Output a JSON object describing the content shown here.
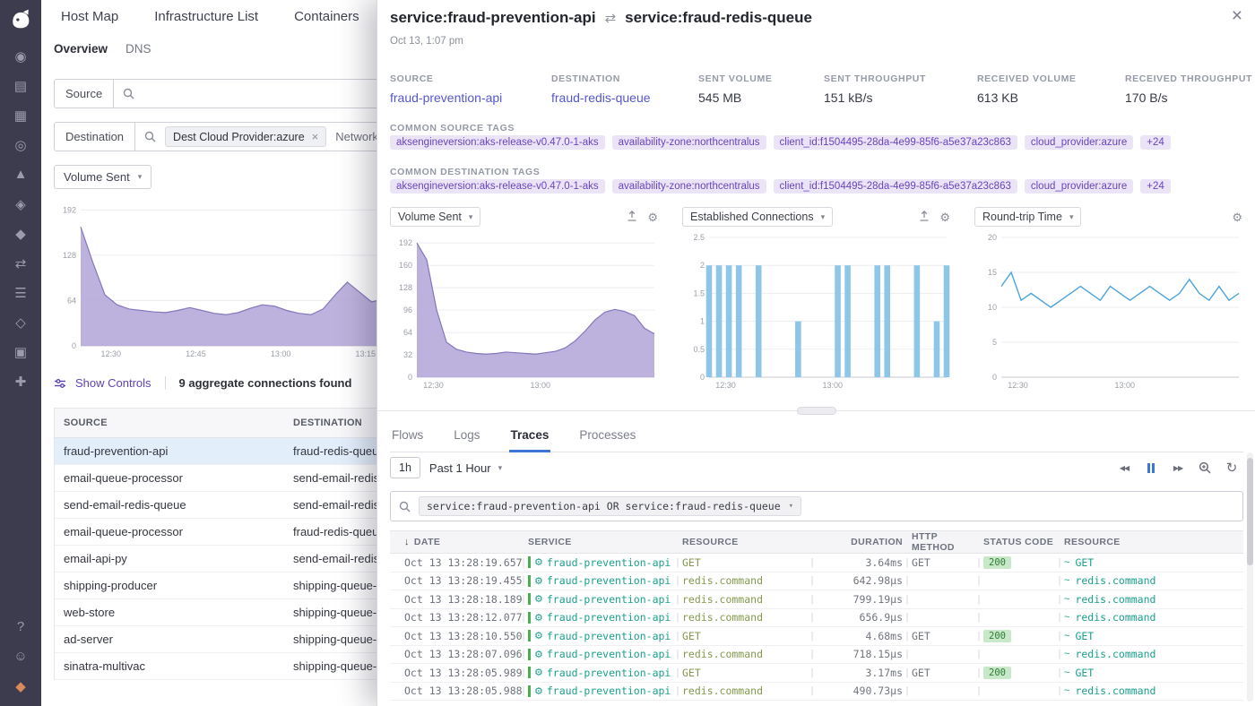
{
  "colors": {
    "accent_purple": "#774aa4",
    "chart_purple_fill": "#b4a7da",
    "chart_purple_stroke": "#8477bd",
    "chart_blue_bar": "#8ec6e8",
    "chart_blue_line": "#4aa3dd",
    "trace_green": "#49b04f",
    "service_teal": "#1aa08c",
    "status_ok_bg": "#c8e8c9",
    "status_ok_text": "#2d7d34",
    "tag_bg": "#ebe4f6",
    "tag_text": "#6a43c0",
    "active_tab_underline": "#3f74d8",
    "selected_row_bg": "#e3eefb",
    "sidebar_bg": "#3c3c4e"
  },
  "sidebar": {
    "icons": [
      {
        "name": "watchdog-icon",
        "glyph": "◉"
      },
      {
        "name": "events-icon",
        "glyph": "▤"
      },
      {
        "name": "dashboards-icon",
        "glyph": "▦"
      },
      {
        "name": "monitors-icon",
        "glyph": "◎"
      },
      {
        "name": "metrics-icon",
        "glyph": "▲"
      },
      {
        "name": "integrations-icon",
        "glyph": "◈"
      },
      {
        "name": "apm-icon",
        "glyph": "◆"
      },
      {
        "name": "network-icon",
        "glyph": "⇄"
      },
      {
        "name": "logs-icon",
        "glyph": "☰"
      },
      {
        "name": "synthetics-icon",
        "glyph": "◇"
      },
      {
        "name": "rum-icon",
        "glyph": "▣"
      },
      {
        "name": "security-icon",
        "glyph": "✚"
      }
    ],
    "bottom_icons": [
      {
        "name": "help-icon",
        "glyph": "?"
      },
      {
        "name": "users-icon",
        "glyph": "☺"
      },
      {
        "name": "org-icon",
        "glyph": "◆",
        "accent": true
      }
    ]
  },
  "main": {
    "top_tabs": [
      "Host Map",
      "Infrastructure List",
      "Containers"
    ],
    "sub_tabs": [
      "Overview",
      "DNS"
    ],
    "filters": {
      "source_label": "Source",
      "destination_label": "Destination",
      "dest_pill": "Dest Cloud Provider:azure",
      "extra_filter": "Network"
    },
    "metric_select": "Volume Sent",
    "show_controls": {
      "label": "Show Controls",
      "result_text": "9 aggregate connections found"
    },
    "connections_table": {
      "columns": [
        "SOURCE",
        "DESTINATION"
      ],
      "selected_index": 0,
      "rows": [
        {
          "source": "fraud-prevention-api",
          "destination": "fraud-redis-queue"
        },
        {
          "source": "email-queue-processor",
          "destination": "send-email-redis-queue"
        },
        {
          "source": "send-email-redis-queue",
          "destination": "send-email-redis-queue"
        },
        {
          "source": "email-queue-processor",
          "destination": "fraud-redis-queue"
        },
        {
          "source": "email-api-py",
          "destination": "send-email-redis-queue"
        },
        {
          "source": "shipping-producer",
          "destination": "shipping-queue-redis"
        },
        {
          "source": "web-store",
          "destination": "shipping-queue-redis"
        },
        {
          "source": "ad-server",
          "destination": "shipping-queue-redis"
        },
        {
          "source": "sinatra-multivac",
          "destination": "shipping-queue-redis"
        }
      ]
    }
  },
  "panel": {
    "title_left": "service:fraud-prevention-api",
    "title_right": "service:fraud-redis-queue",
    "timestamp": "Oct 13, 1:07 pm",
    "stats": [
      {
        "label": "SOURCE",
        "value": "fraud-prevention-api",
        "link": true
      },
      {
        "label": "DESTINATION",
        "value": "fraud-redis-queue",
        "link": true
      },
      {
        "label": "SENT VOLUME",
        "value": "545 MB"
      },
      {
        "label": "SENT THROUGHPUT",
        "value": "151 kB/s"
      },
      {
        "label": "RECEIVED VOLUME",
        "value": "613 KB"
      },
      {
        "label": "RECEIVED THROUGHPUT",
        "value": "170 B/s"
      }
    ],
    "common_source_tags_label": "COMMON SOURCE TAGS",
    "common_destination_tags_label": "COMMON DESTINATION TAGS",
    "tags": [
      "aksengineversion:aks-release-v0.47.0-1-aks",
      "availability-zone:northcentralus",
      "client_id:f1504495-28da-4e99-85f6-a5e37a23c863",
      "cloud_provider:azure",
      "+24"
    ],
    "tabs": [
      "Flows",
      "Logs",
      "Traces",
      "Processes"
    ],
    "active_tab": "Traces",
    "time_range": {
      "short": "1h",
      "label": "Past 1 Hour"
    },
    "search_query": "service:fraud-prevention-api OR service:fraud-redis-queue",
    "traces_table": {
      "columns": [
        "DATE",
        "SERVICE",
        "RESOURCE",
        "DURATION",
        "HTTP METHOD",
        "STATUS CODE",
        "RESOURCE"
      ],
      "rows": [
        {
          "date": "Oct 13 13:28:19.657",
          "service": "fraud-prevention-api",
          "resource": "GET",
          "duration": "3.64ms",
          "method": "GET",
          "status": "200",
          "resource2": "GET"
        },
        {
          "date": "Oct 13 13:28:19.455",
          "service": "fraud-prevention-api",
          "resource": "redis.command",
          "duration": "642.98µs",
          "method": "",
          "status": "",
          "resource2": "redis.command"
        },
        {
          "date": "Oct 13 13:28:18.189",
          "service": "fraud-prevention-api",
          "resource": "redis.command",
          "duration": "799.19µs",
          "method": "",
          "status": "",
          "resource2": "redis.command"
        },
        {
          "date": "Oct 13 13:28:12.077",
          "service": "fraud-prevention-api",
          "resource": "redis.command",
          "duration": "656.9µs",
          "method": "",
          "status": "",
          "resource2": "redis.command"
        },
        {
          "date": "Oct 13 13:28:10.550",
          "service": "fraud-prevention-api",
          "resource": "GET",
          "duration": "4.68ms",
          "method": "GET",
          "status": "200",
          "resource2": "GET"
        },
        {
          "date": "Oct 13 13:28:07.096",
          "service": "fraud-prevention-api",
          "resource": "redis.command",
          "duration": "718.15µs",
          "method": "",
          "status": "",
          "resource2": "redis.command"
        },
        {
          "date": "Oct 13 13:28:05.989",
          "service": "fraud-prevention-api",
          "resource": "GET",
          "duration": "3.17ms",
          "method": "GET",
          "status": "200",
          "resource2": "GET"
        },
        {
          "date": "Oct 13 13:28:05.988",
          "service": "fraud-prevention-api",
          "resource": "redis.command",
          "duration": "490.73µs",
          "method": "",
          "status": "",
          "resource2": "redis.command"
        }
      ]
    }
  },
  "chart_data": [
    {
      "id": "main-volume",
      "type": "area",
      "title": "Volume Sent",
      "ylabel": "",
      "ylim": [
        0,
        200
      ],
      "yticks": [
        0,
        64,
        128,
        192
      ],
      "grid": true,
      "legend": "none",
      "xticks": [
        {
          "label": "12:30",
          "pos": 0.1
        },
        {
          "label": "12:45",
          "pos": 0.38
        },
        {
          "label": "13:00",
          "pos": 0.66
        },
        {
          "label": "13:15",
          "pos": 0.94
        }
      ],
      "values": [
        168,
        118,
        72,
        58,
        52,
        50,
        48,
        47,
        50,
        54,
        50,
        46,
        44,
        47,
        53,
        58,
        56,
        50,
        46,
        44,
        52,
        72,
        90,
        76,
        62,
        66
      ],
      "fill": "#b4a7da",
      "stroke": "#8477bd"
    },
    {
      "id": "panel-volume",
      "type": "area",
      "title": "Volume Sent",
      "ylabel": "",
      "ylim": [
        0,
        200
      ],
      "yticks": [
        0,
        32,
        64,
        96,
        128,
        160,
        192
      ],
      "grid": true,
      "legend": "none",
      "xticks": [
        {
          "label": "12:30",
          "pos": 0.07
        },
        {
          "label": "13:00",
          "pos": 0.52
        }
      ],
      "values": [
        192,
        168,
        96,
        50,
        40,
        36,
        34,
        33,
        34,
        36,
        35,
        34,
        33,
        35,
        37,
        42,
        52,
        66,
        82,
        93,
        97,
        94,
        88,
        70,
        62
      ],
      "fill": "#b4a7da",
      "stroke": "#8477bd"
    },
    {
      "id": "panel-connections",
      "type": "bar",
      "title": "Established Connections",
      "ylabel": "",
      "ylim": [
        0,
        2.5
      ],
      "yticks": [
        0,
        0.5,
        1,
        1.5,
        2,
        2.5
      ],
      "grid": true,
      "legend": "none",
      "xticks": [
        {
          "label": "12:30",
          "pos": 0.07
        },
        {
          "label": "13:00",
          "pos": 0.52
        }
      ],
      "values": [
        2,
        2,
        2,
        2,
        0,
        2,
        0,
        0,
        0,
        1,
        0,
        0,
        0,
        2,
        2,
        0,
        0,
        2,
        2,
        0,
        0,
        2,
        0,
        1,
        2
      ],
      "fill": "#8ec6e8"
    },
    {
      "id": "panel-rtt",
      "type": "line",
      "title": "Round-trip Time",
      "ylabel": "",
      "ylim": [
        0,
        20
      ],
      "yticks": [
        0,
        5,
        10,
        15,
        20
      ],
      "grid": true,
      "legend": "none",
      "xticks": [
        {
          "label": "12:30",
          "pos": 0.07
        },
        {
          "label": "13:00",
          "pos": 0.52
        }
      ],
      "values": [
        13,
        15,
        11,
        12,
        11,
        10,
        11,
        12,
        13,
        12,
        11,
        13,
        12,
        11,
        12,
        13,
        12,
        11,
        12,
        14,
        12,
        11,
        13,
        11,
        12
      ],
      "stroke": "#4aa3dd"
    }
  ]
}
